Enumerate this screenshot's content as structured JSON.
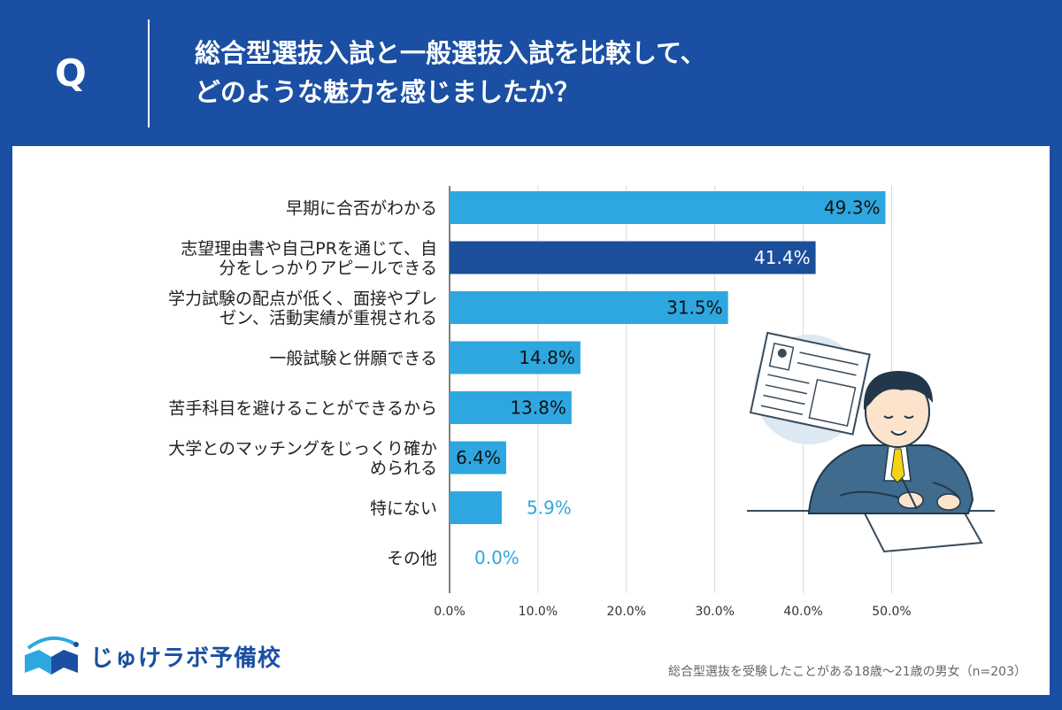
{
  "header": {
    "q_mark": "Q",
    "question_line1": "総合型選抜入試と一般選抜入試を比較して、",
    "question_line2": "どのような魅力を感じましたか？"
  },
  "colors": {
    "background": "#1a4fa3",
    "bar": "#2ea7e0",
    "bar_highlight": "#1b4e9b",
    "value_outside": "#2ea7e0"
  },
  "chart_data": {
    "type": "bar",
    "orientation": "horizontal",
    "categories": [
      [
        "早期に合否がわかる"
      ],
      [
        "志望理由書や自己PRを通じて、自",
        "分をしっかりアピールできる"
      ],
      [
        "学力試験の配点が低く、面接やプレ",
        "ゼン、活動実績が重視される"
      ],
      [
        "一般試験と併願できる"
      ],
      [
        "苦手科目を避けることができるから"
      ],
      [
        "大学とのマッチングをじっくり確か",
        "められる"
      ],
      [
        "特にない"
      ],
      [
        "その他"
      ]
    ],
    "values": [
      49.3,
      41.4,
      31.5,
      14.8,
      13.8,
      6.4,
      5.9,
      0.0
    ],
    "value_labels": [
      "49.3%",
      "41.4%",
      "31.5%",
      "14.8%",
      "13.8%",
      "6.4%",
      "5.9%",
      "0.0%"
    ],
    "highlight_index": 1,
    "xlim": [
      0,
      50
    ],
    "ticks": [
      "0.0%",
      "10.0%",
      "20.0%",
      "30.0%",
      "40.0%",
      "50.0%"
    ],
    "grid": true
  },
  "logo": {
    "icon": "open-book-icon",
    "text": "じゅけラボ予備校"
  },
  "footnote": "総合型選抜を受験したことがある18歳～21歳の男女（n=203）",
  "illustration": {
    "icon": "student-writing-application-illustration"
  }
}
